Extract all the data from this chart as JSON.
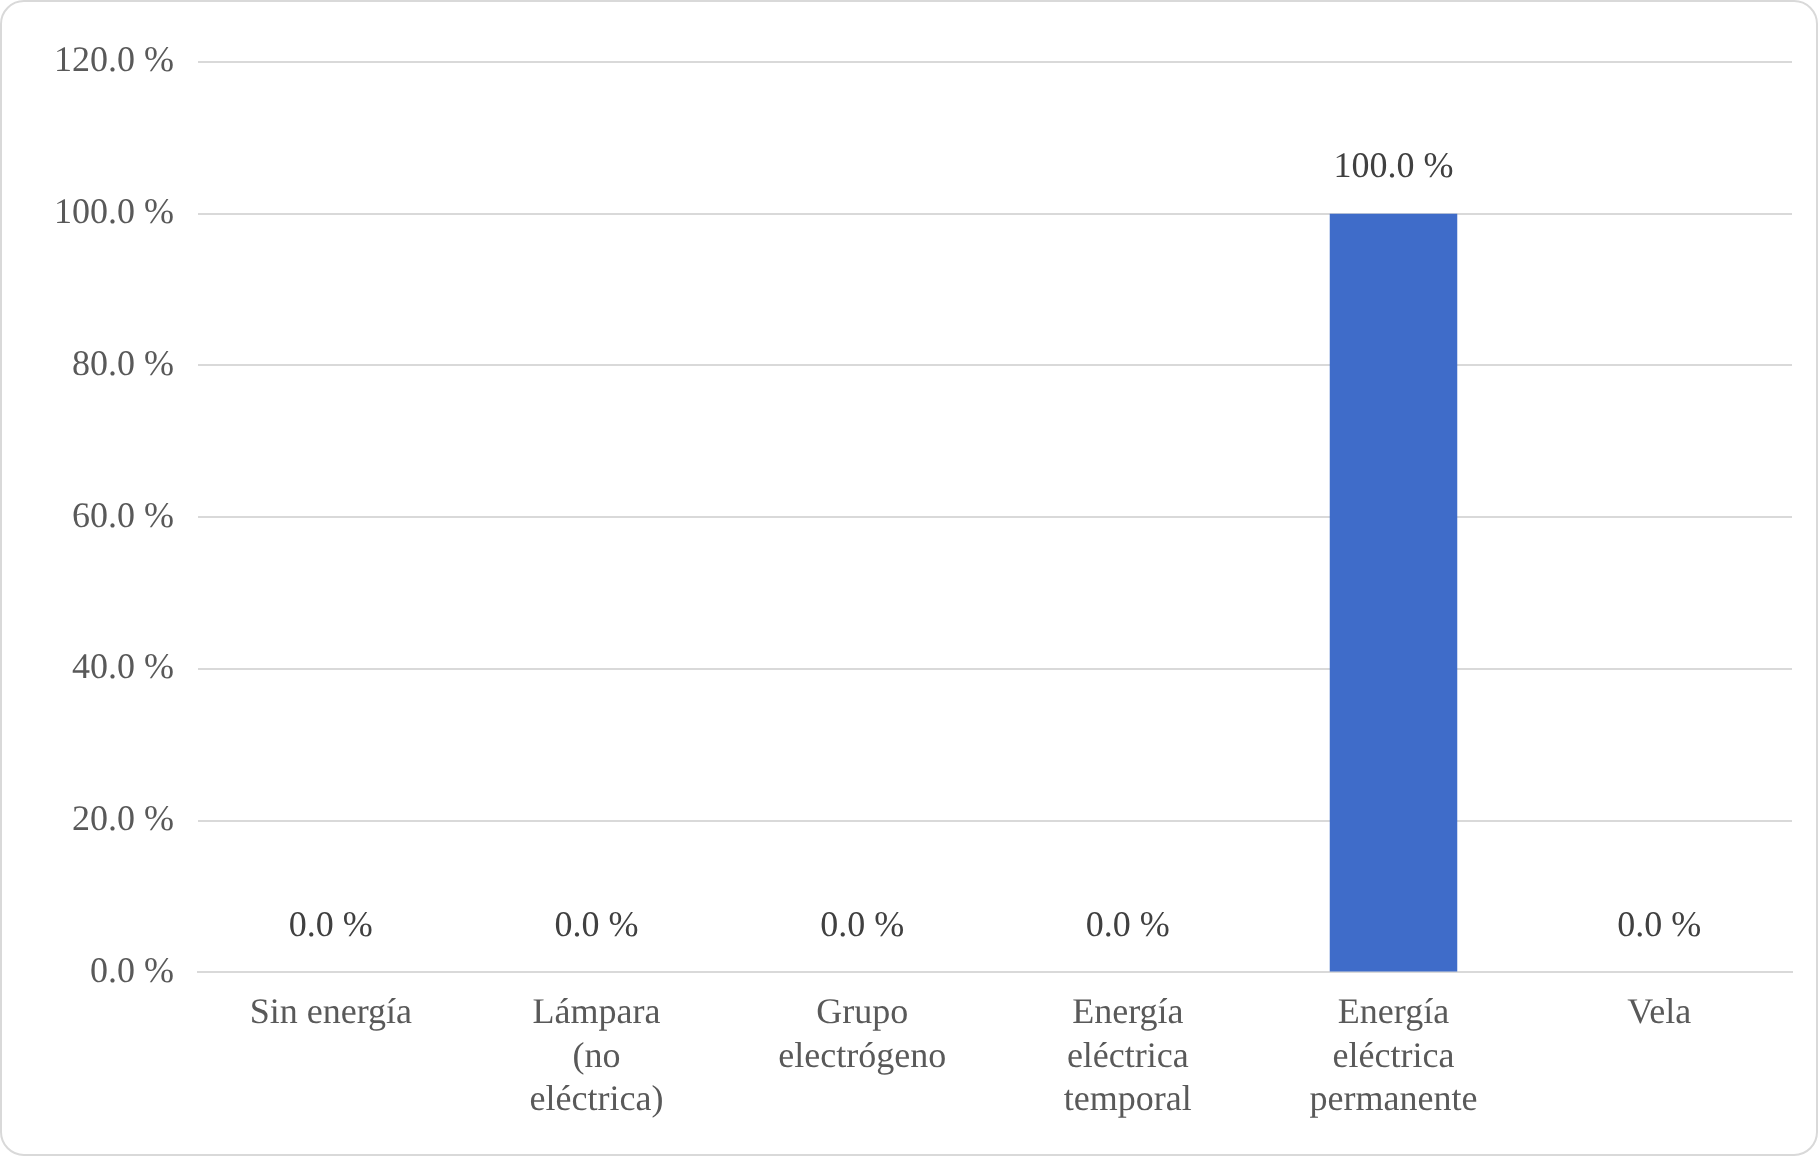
{
  "chart_data": {
    "type": "bar",
    "categories": [
      "Sin energía",
      "Lámpara (no eléctrica)",
      "Grupo electrógeno",
      "Energía eléctrica temporal",
      "Energía eléctrica permanente",
      "Vela"
    ],
    "values": [
      0,
      0,
      0,
      0,
      100,
      0
    ],
    "value_labels": [
      "0.0 %",
      "0.0 %",
      "0.0 %",
      "0.0 %",
      "100.0 %",
      "0.0 %"
    ],
    "color": "#3f6cc9",
    "ylim": [
      0,
      120
    ],
    "yticks": [
      {
        "value": 0,
        "label": "0.0 %"
      },
      {
        "value": 20,
        "label": "20.0 %"
      },
      {
        "value": 40,
        "label": "40.0 %"
      },
      {
        "value": 60,
        "label": "60.0 %"
      },
      {
        "value": 80,
        "label": "80.0 %"
      },
      {
        "value": 100,
        "label": "100.0 %"
      },
      {
        "value": 120,
        "label": "120.0 %"
      }
    ],
    "grid": "y",
    "legend": false
  }
}
